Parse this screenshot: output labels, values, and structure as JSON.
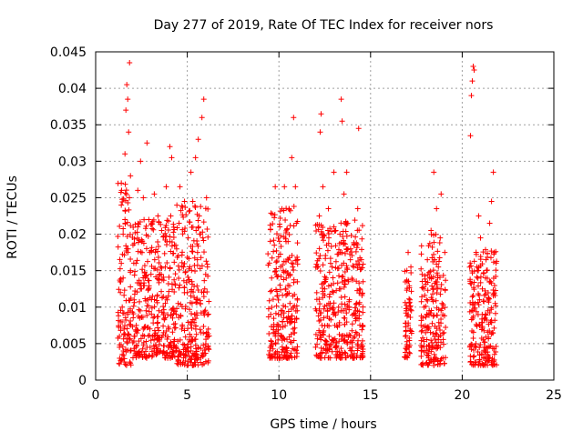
{
  "chart_data": {
    "type": "scatter",
    "title": "Day 277 of 2019, Rate Of TEC Index for receiver nors",
    "xlabel": "GPS time / hours",
    "ylabel": "ROTI / TECUs",
    "xlim": [
      0,
      25
    ],
    "ylim": [
      0,
      0.045
    ],
    "x_ticks": [
      0,
      5,
      10,
      15,
      20,
      25
    ],
    "y_ticks": [
      0,
      0.005,
      0.01,
      0.015,
      0.02,
      0.025,
      0.03,
      0.035,
      0.04,
      0.045
    ],
    "x_tick_labels": [
      "0",
      "5",
      "10",
      "15",
      "20",
      "25"
    ],
    "y_tick_labels": [
      "0",
      "0.005",
      "0.01",
      "0.015",
      "0.02",
      "0.025",
      "0.03",
      "0.035",
      "0.04",
      "0.045"
    ],
    "grid": true,
    "marker": "+",
    "color": "#ff0000",
    "series": [
      {
        "name": "ROTI",
        "points": [
          [
            1.3,
            0.0045
          ],
          [
            1.3,
            0.006
          ],
          [
            1.35,
            0.008
          ],
          [
            1.35,
            0.012
          ],
          [
            1.4,
            0.016
          ],
          [
            1.4,
            0.024
          ],
          [
            1.4,
            0.027
          ],
          [
            1.45,
            0.0035
          ],
          [
            1.45,
            0.01
          ],
          [
            1.5,
            0.014
          ],
          [
            1.5,
            0.02
          ],
          [
            1.55,
            0.0025
          ],
          [
            1.55,
            0.007
          ],
          [
            1.6,
            0.031
          ],
          [
            1.6,
            0.022
          ],
          [
            1.65,
            0.037
          ],
          [
            1.7,
            0.0405
          ],
          [
            1.7,
            0.018
          ],
          [
            1.75,
            0.0385
          ],
          [
            1.75,
            0.009
          ],
          [
            1.8,
            0.034
          ],
          [
            1.85,
            0.0435
          ],
          [
            1.85,
            0.0055
          ],
          [
            1.9,
            0.028
          ],
          [
            1.9,
            0.015
          ],
          [
            2.1,
            0.006
          ],
          [
            2.1,
            0.011
          ],
          [
            2.2,
            0.0045
          ],
          [
            2.2,
            0.016
          ],
          [
            2.3,
            0.026
          ],
          [
            2.3,
            0.021
          ],
          [
            2.4,
            0.0085
          ],
          [
            2.45,
            0.03
          ],
          [
            2.5,
            0.0125
          ],
          [
            2.5,
            0.019
          ],
          [
            2.6,
            0.025
          ],
          [
            2.6,
            0.007
          ],
          [
            2.7,
            0.014
          ],
          [
            2.75,
            0.0095
          ],
          [
            2.8,
            0.0325
          ],
          [
            2.8,
            0.0045
          ],
          [
            2.9,
            0.022
          ],
          [
            2.95,
            0.0175
          ],
          [
            3.1,
            0.006
          ],
          [
            3.1,
            0.0115
          ],
          [
            3.2,
            0.0255
          ],
          [
            3.25,
            0.0175
          ],
          [
            3.3,
            0.0045
          ],
          [
            3.4,
            0.0225
          ],
          [
            3.45,
            0.0095
          ],
          [
            3.5,
            0.0145
          ],
          [
            3.6,
            0.0205
          ],
          [
            3.7,
            0.0065
          ],
          [
            3.8,
            0.0155
          ],
          [
            3.85,
            0.0265
          ],
          [
            3.9,
            0.011
          ],
          [
            4.0,
            0.0045
          ],
          [
            4.05,
            0.032
          ],
          [
            4.1,
            0.0225
          ],
          [
            4.15,
            0.0305
          ],
          [
            4.2,
            0.0085
          ],
          [
            4.3,
            0.0185
          ],
          [
            4.35,
            0.013
          ],
          [
            4.4,
            0.004
          ],
          [
            4.5,
            0.0105
          ],
          [
            4.55,
            0.0215
          ],
          [
            4.6,
            0.0265
          ],
          [
            4.7,
            0.007
          ],
          [
            4.8,
            0.0155
          ],
          [
            4.85,
            0.0245
          ],
          [
            4.9,
            0.0035
          ],
          [
            5.0,
            0.012
          ],
          [
            5.05,
            0.0195
          ],
          [
            5.1,
            0.0055
          ],
          [
            5.2,
            0.0285
          ],
          [
            5.25,
            0.0135
          ],
          [
            5.3,
            0.0245
          ],
          [
            5.4,
            0.009
          ],
          [
            5.45,
            0.0305
          ],
          [
            5.5,
            0.0035
          ],
          [
            5.55,
            0.0165
          ],
          [
            5.6,
            0.033
          ],
          [
            5.65,
            0.0225
          ],
          [
            5.7,
            0.0105
          ],
          [
            5.75,
            0.0065
          ],
          [
            5.8,
            0.036
          ],
          [
            5.85,
            0.0195
          ],
          [
            5.9,
            0.0385
          ],
          [
            5.95,
            0.0125
          ],
          [
            6.0,
            0.0045
          ],
          [
            6.05,
            0.025
          ],
          [
            6.1,
            0.0155
          ],
          [
            6.15,
            0.007
          ],
          [
            9.5,
            0.004
          ],
          [
            9.55,
            0.009
          ],
          [
            9.6,
            0.014
          ],
          [
            9.7,
            0.0065
          ],
          [
            9.75,
            0.0185
          ],
          [
            9.8,
            0.0265
          ],
          [
            9.9,
            0.0115
          ],
          [
            10.0,
            0.0035
          ],
          [
            10.05,
            0.021
          ],
          [
            10.1,
            0.0155
          ],
          [
            10.2,
            0.008
          ],
          [
            10.3,
            0.0265
          ],
          [
            10.35,
            0.0125
          ],
          [
            10.4,
            0.0045
          ],
          [
            10.5,
            0.019
          ],
          [
            10.55,
            0.0235
          ],
          [
            10.6,
            0.0105
          ],
          [
            10.7,
            0.0305
          ],
          [
            10.75,
            0.0155
          ],
          [
            10.8,
            0.036
          ],
          [
            10.85,
            0.0065
          ],
          [
            10.9,
            0.0265
          ],
          [
            10.95,
            0.0215
          ],
          [
            11.0,
            0.0095
          ],
          [
            12.0,
            0.0045
          ],
          [
            12.05,
            0.0095
          ],
          [
            12.1,
            0.0155
          ],
          [
            12.2,
            0.0225
          ],
          [
            12.25,
            0.034
          ],
          [
            12.3,
            0.0365
          ],
          [
            12.35,
            0.0075
          ],
          [
            12.4,
            0.0265
          ],
          [
            12.5,
            0.0125
          ],
          [
            12.6,
            0.0185
          ],
          [
            12.7,
            0.0235
          ],
          [
            12.75,
            0.0045
          ],
          [
            12.8,
            0.0105
          ],
          [
            12.9,
            0.0155
          ],
          [
            13.0,
            0.0285
          ],
          [
            13.05,
            0.0075
          ],
          [
            13.1,
            0.0205
          ],
          [
            13.2,
            0.0035
          ],
          [
            13.3,
            0.0125
          ],
          [
            13.35,
            0.0175
          ],
          [
            13.4,
            0.0385
          ],
          [
            13.45,
            0.0355
          ],
          [
            13.5,
            0.0095
          ],
          [
            13.55,
            0.0255
          ],
          [
            13.6,
            0.0055
          ],
          [
            13.7,
            0.0285
          ],
          [
            13.75,
            0.0215
          ],
          [
            13.8,
            0.0135
          ],
          [
            13.9,
            0.0165
          ],
          [
            14.0,
            0.0045
          ],
          [
            14.1,
            0.0185
          ],
          [
            14.2,
            0.0095
          ],
          [
            14.3,
            0.0235
          ],
          [
            14.35,
            0.0345
          ],
          [
            14.4,
            0.0125
          ],
          [
            14.5,
            0.0165
          ],
          [
            14.55,
            0.0075
          ],
          [
            16.9,
            0.006
          ],
          [
            16.95,
            0.0095
          ],
          [
            17.0,
            0.0135
          ],
          [
            17.05,
            0.0175
          ],
          [
            17.1,
            0.0045
          ],
          [
            17.15,
            0.011
          ],
          [
            17.2,
            0.0155
          ],
          [
            17.8,
            0.0045
          ],
          [
            17.85,
            0.0085
          ],
          [
            17.9,
            0.0125
          ],
          [
            18.0,
            0.0065
          ],
          [
            18.1,
            0.0165
          ],
          [
            18.2,
            0.0095
          ],
          [
            18.3,
            0.0205
          ],
          [
            18.4,
            0.0125
          ],
          [
            18.45,
            0.0285
          ],
          [
            18.5,
            0.0045
          ],
          [
            18.6,
            0.0235
          ],
          [
            18.7,
            0.0155
          ],
          [
            18.8,
            0.0195
          ],
          [
            18.85,
            0.0255
          ],
          [
            18.9,
            0.0105
          ],
          [
            19.0,
            0.0065
          ],
          [
            19.05,
            0.0175
          ],
          [
            20.45,
            0.0335
          ],
          [
            20.5,
            0.039
          ],
          [
            20.55,
            0.041
          ],
          [
            20.6,
            0.043
          ],
          [
            20.65,
            0.0425
          ],
          [
            20.7,
            0.0105
          ],
          [
            20.75,
            0.0045
          ],
          [
            20.8,
            0.0155
          ],
          [
            20.9,
            0.0225
          ],
          [
            20.95,
            0.0075
          ],
          [
            21.0,
            0.0195
          ],
          [
            21.1,
            0.0125
          ],
          [
            21.2,
            0.0045
          ],
          [
            21.3,
            0.0165
          ],
          [
            21.4,
            0.0095
          ],
          [
            21.5,
            0.0215
          ],
          [
            21.55,
            0.0135
          ],
          [
            21.6,
            0.0245
          ],
          [
            21.65,
            0.0065
          ],
          [
            21.7,
            0.0285
          ],
          [
            21.75,
            0.0175
          ],
          [
            21.8,
            0.0105
          ]
        ],
        "dense_bands": [
          {
            "x_start": 1.2,
            "x_end": 1.95,
            "y_min": 0.002,
            "y_max": 0.027
          },
          {
            "x_start": 2.0,
            "x_end": 4.4,
            "y_min": 0.003,
            "y_max": 0.022
          },
          {
            "x_start": 4.4,
            "x_end": 6.2,
            "y_min": 0.002,
            "y_max": 0.024
          },
          {
            "x_start": 9.4,
            "x_end": 11.05,
            "y_min": 0.003,
            "y_max": 0.024
          },
          {
            "x_start": 12.0,
            "x_end": 14.6,
            "y_min": 0.003,
            "y_max": 0.022
          },
          {
            "x_start": 16.85,
            "x_end": 17.25,
            "y_min": 0.003,
            "y_max": 0.016
          },
          {
            "x_start": 17.75,
            "x_end": 19.1,
            "y_min": 0.002,
            "y_max": 0.02
          },
          {
            "x_start": 20.4,
            "x_end": 21.9,
            "y_min": 0.002,
            "y_max": 0.018
          }
        ]
      }
    ]
  }
}
